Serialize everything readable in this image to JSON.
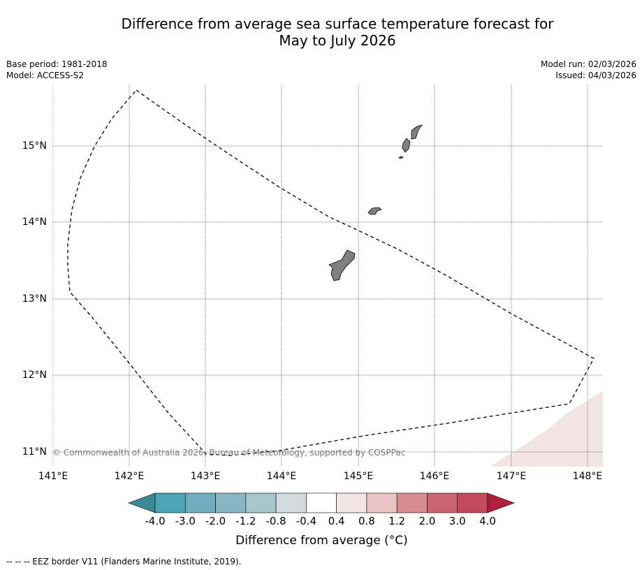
{
  "title": {
    "line1": "Difference from average sea surface temperature forecast for",
    "line2": "May to July 2026"
  },
  "meta_left": {
    "base_period": "Base period: 1981-2018",
    "model": "Model: ACCESS-S2"
  },
  "meta_right": {
    "model_run": "Model run: 02/03/2026",
    "issued": "Issued: 04/03/2026"
  },
  "map": {
    "lat_labels": [
      "15°N",
      "14°N",
      "13°N",
      "12°N",
      "11°N"
    ],
    "lon_labels": [
      "141°E",
      "142°E",
      "143°E",
      "144°E",
      "145°E",
      "146°E",
      "147°E",
      "148°E"
    ],
    "copyright": "© Commonwealth of Australia 2026, Bureau of Meteorology, supported by COSPPac",
    "colors": {
      "land": "#808080",
      "anomaly_patch": "#f2e6e4",
      "eez_line": "#000000",
      "gridline": "#000000"
    }
  },
  "colorbar": {
    "tick_labels": [
      "-4.0",
      "-3.0",
      "-2.0",
      "-1.2",
      "-0.8",
      "-0.4",
      "0.4",
      "0.8",
      "1.2",
      "2.0",
      "3.0",
      "4.0"
    ],
    "colors": [
      "#3d8a97",
      "#4ba5b5",
      "#6dadbd",
      "#8ab5c2",
      "#a7c6cb",
      "#d4dbde",
      "#ffffff",
      "#f2e6e4",
      "#e8c4c2",
      "#d88d93",
      "#cc6470",
      "#c24a5b",
      "#b21f3e"
    ],
    "label": "Difference from average (°C)"
  },
  "footer": {
    "legend": "-- -- -- EEZ border V11 (Flanders Marine Institute, 2019)."
  }
}
